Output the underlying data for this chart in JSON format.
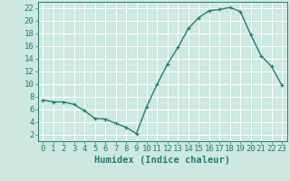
{
  "x": [
    0,
    1,
    2,
    3,
    4,
    5,
    6,
    7,
    8,
    9,
    10,
    11,
    12,
    13,
    14,
    15,
    16,
    17,
    18,
    19,
    20,
    21,
    22,
    23
  ],
  "y": [
    7.5,
    7.2,
    7.2,
    6.8,
    5.8,
    4.6,
    4.5,
    3.8,
    3.2,
    2.2,
    6.5,
    10.0,
    13.2,
    15.8,
    18.8,
    20.5,
    21.6,
    21.8,
    22.1,
    21.5,
    17.8,
    14.5,
    12.8,
    9.8
  ],
  "line_color": "#2d7a6e",
  "marker": "+",
  "bg_color": "#cce8e0",
  "grid_color": "#b8d8d0",
  "xlabel": "Humidex (Indice chaleur)",
  "xlim": [
    -0.5,
    23.5
  ],
  "ylim": [
    1,
    23
  ],
  "yticks": [
    2,
    4,
    6,
    8,
    10,
    12,
    14,
    16,
    18,
    20,
    22
  ],
  "xticks": [
    0,
    1,
    2,
    3,
    4,
    5,
    6,
    7,
    8,
    9,
    10,
    11,
    12,
    13,
    14,
    15,
    16,
    17,
    18,
    19,
    20,
    21,
    22,
    23
  ],
  "tick_color": "#2d7a6e",
  "label_color": "#2d7a6e",
  "font_size": 6.5,
  "xlabel_fontsize": 7.5,
  "linewidth": 1.0,
  "markersize": 3.5
}
